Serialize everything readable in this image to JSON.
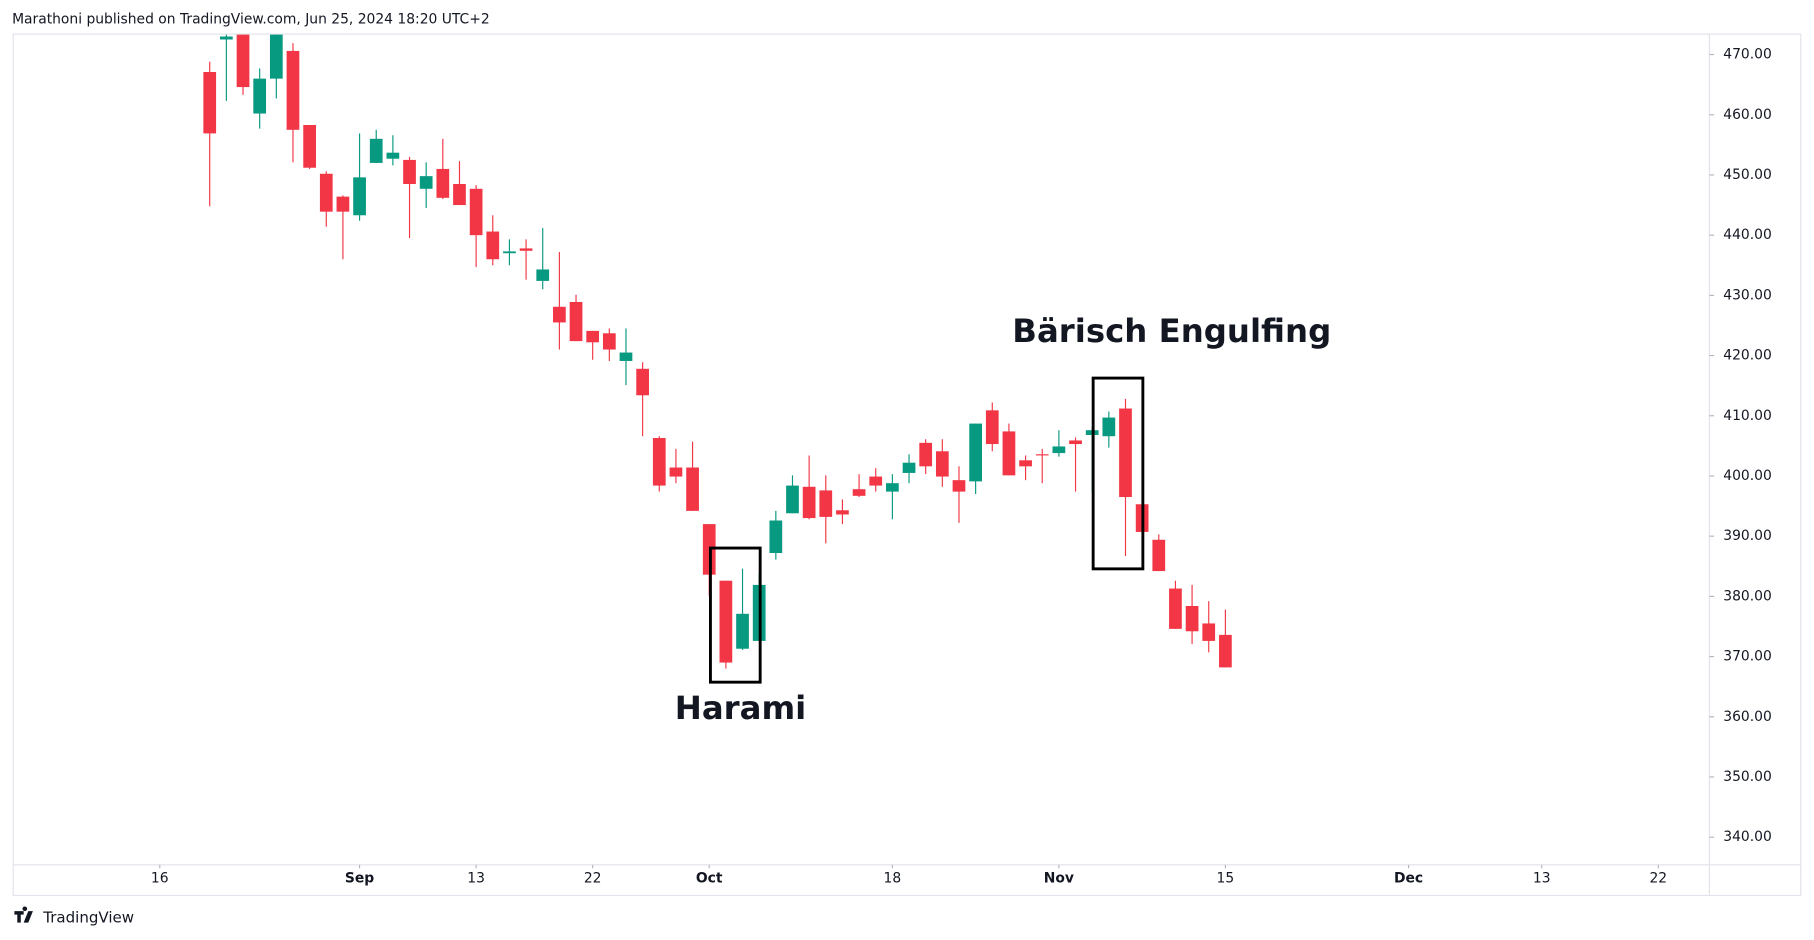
{
  "header_text": "Marathoni published on TradingView.com, Jun 25, 2024 18:20 UTC+2",
  "footer_text": "TradingView",
  "chart_data": {
    "type": "candlestick",
    "up_color": "#089981",
    "down_color": "#f23645",
    "annotations": [
      "Harami",
      "Bärisch Engulfing"
    ],
    "xlim": [
      -11.8,
      90.07
    ],
    "xticks": [
      {
        "value": -3,
        "label": "16"
      },
      {
        "value": 9,
        "label": "Sep"
      },
      {
        "value": 16,
        "label": "13"
      },
      {
        "value": 23,
        "label": "22"
      },
      {
        "value": 30,
        "label": "Oct"
      },
      {
        "value": 41,
        "label": "18"
      },
      {
        "value": 51,
        "label": "Nov"
      },
      {
        "value": 61,
        "label": "15"
      },
      {
        "value": 72,
        "label": "Dec"
      },
      {
        "value": 80,
        "label": "13"
      },
      {
        "value": 87,
        "label": "22"
      }
    ],
    "ylim": [
      335.4,
      473.3
    ],
    "yticks": [
      {
        "value": 340,
        "label": "340.00"
      },
      {
        "value": 350,
        "label": "350.00"
      },
      {
        "value": 360,
        "label": "360.00"
      },
      {
        "value": 370,
        "label": "370.00"
      },
      {
        "value": 380,
        "label": "380.00"
      },
      {
        "value": 390,
        "label": "390.00"
      },
      {
        "value": 400,
        "label": "400.00"
      },
      {
        "value": 410,
        "label": "410.00"
      },
      {
        "value": 420,
        "label": "420.00"
      },
      {
        "value": 430,
        "label": "430.00"
      },
      {
        "value": 440,
        "label": "440.00"
      },
      {
        "value": 450,
        "label": "450.00"
      },
      {
        "value": 460,
        "label": "460.00"
      },
      {
        "value": 470,
        "label": "470.00"
      }
    ],
    "open": [
      467.1,
      472.5,
      476,
      460.2,
      466.0,
      470.6,
      458.3,
      450.2,
      446.4,
      443.3,
      452.0,
      452.7,
      452.5,
      447.7,
      451.0,
      448.5,
      447.7,
      440.6,
      437.0,
      437.8,
      432.4,
      428.1,
      428.9,
      424.1,
      423.7,
      419.1,
      417.8,
      406.3,
      401.4,
      401.4,
      392.0,
      382.6,
      371.3,
      372.6,
      387.2,
      393.8,
      398.2,
      397.6,
      394.3,
      397.8,
      399.9,
      397.4,
      400.5,
      405.5,
      404.1,
      399.3,
      399.1,
      410.9,
      407.4,
      402.6,
      403.6,
      403.8,
      405.9,
      406.8,
      406.6,
      411.2,
      395.3,
      389.4,
      381.3,
      378.4,
      375.5,
      373.6
    ],
    "high": [
      468.8,
      474,
      478,
      467.7,
      477,
      471.9,
      458.3,
      450.6,
      446.6,
      456.9,
      457.5,
      456.6,
      453,
      452.1,
      456.0,
      452.3,
      448.3,
      443.3,
      439.3,
      439.3,
      441.2,
      437.2,
      430.1,
      424.1,
      424.5,
      424.5,
      418.9,
      406.6,
      404.5,
      405.7,
      392.0,
      382.6,
      384.6,
      383.8,
      394.2,
      400.1,
      403.4,
      400.1,
      396.1,
      400.3,
      401.3,
      400.3,
      403.6,
      406.1,
      406.1,
      401.6,
      408.7,
      412.2,
      408.7,
      403.4,
      404.5,
      407.6,
      406.4,
      408.2,
      410.7,
      412.8,
      399.0,
      390.3,
      382.6,
      381.9,
      379.2,
      377.8
    ],
    "low": [
      444.8,
      462.3,
      463.3,
      457.7,
      462.7,
      452.1,
      451,
      441.4,
      436.0,
      442.4,
      452.0,
      451.6,
      439.5,
      444.5,
      446,
      445,
      434.7,
      435,
      435,
      432.6,
      431.0,
      421.0,
      422.4,
      419.3,
      419.1,
      415.1,
      406.6,
      397.4,
      398.8,
      394.2,
      380.1,
      368.0,
      371.1,
      372.6,
      386.1,
      393.8,
      392.8,
      388.8,
      392.0,
      396.5,
      397.4,
      392.8,
      398.8,
      400.3,
      398.2,
      392.2,
      397.0,
      404.1,
      400.1,
      399.3,
      398.8,
      403.2,
      397.4,
      397.4,
      404.7,
      386.7,
      385.0,
      384.2,
      374.6,
      372.1,
      370.7,
      368.2
    ],
    "close": [
      456.9,
      473.0,
      464.6,
      466.0,
      475,
      457.5,
      451.2,
      443.9,
      443.9,
      449.6,
      456.0,
      453.7,
      448.5,
      449.8,
      446.2,
      445.0,
      440.0,
      436.0,
      437.3,
      437.4,
      434.3,
      425.5,
      422.4,
      422.2,
      421.0,
      420.5,
      413.4,
      398.4,
      399.9,
      394.2,
      383.6,
      369.0,
      377.1,
      381.9,
      392.6,
      398.4,
      393.0,
      393.2,
      393.6,
      396.7,
      398.4,
      398.8,
      402.2,
      401.6,
      399.9,
      397.4,
      408.7,
      405.3,
      400.1,
      401.6,
      403.5,
      404.9,
      405.3,
      407.6,
      409.7,
      396.5,
      390.7,
      384.2,
      374.6,
      374.2,
      372.6,
      368.2
    ]
  }
}
